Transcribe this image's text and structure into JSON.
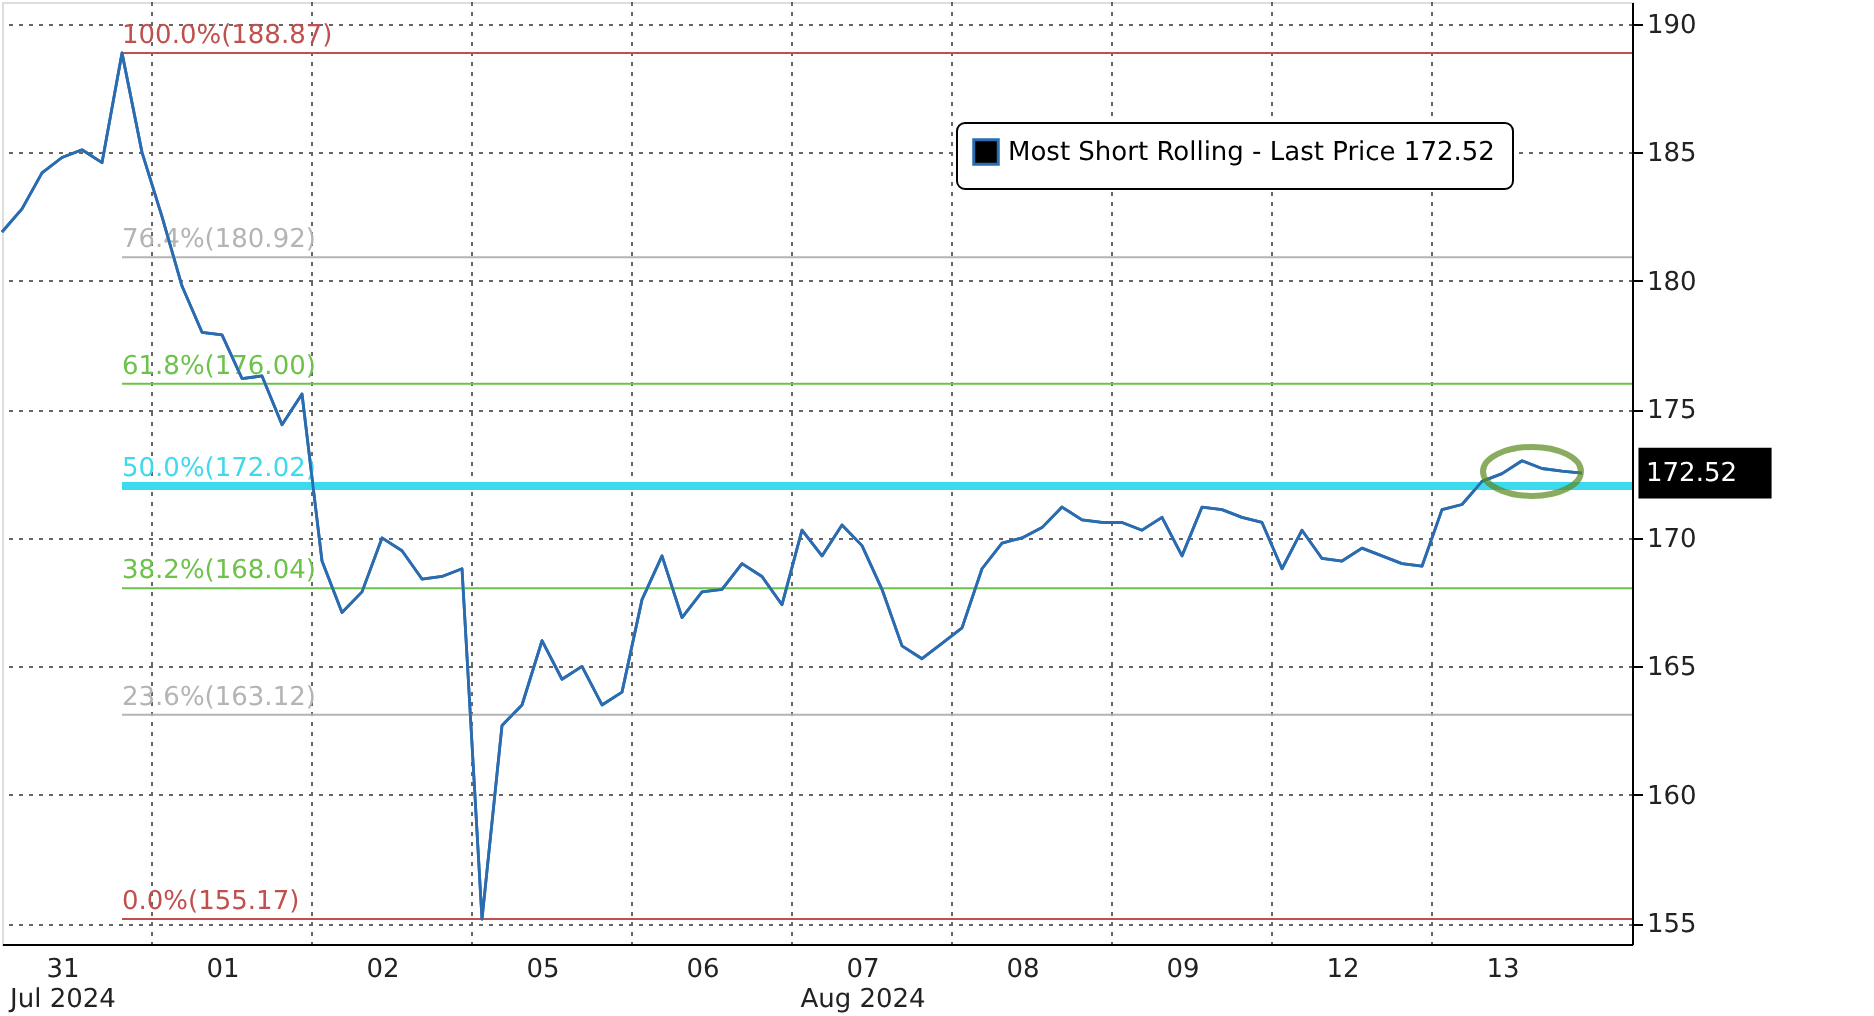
{
  "chart_data": {
    "type": "line",
    "categories": [
      null,
      null,
      null,
      "31\nJul 2024",
      null,
      null,
      null,
      null,
      null,
      null,
      null,
      "01",
      null,
      null,
      null,
      null,
      null,
      null,
      null,
      "02",
      null,
      null,
      null,
      null,
      null,
      null,
      null,
      "05",
      null,
      null,
      null,
      null,
      null,
      null,
      null,
      "06",
      null,
      null,
      null,
      null,
      null,
      null,
      null,
      "07\nAug 2024",
      null,
      null,
      null,
      null,
      null,
      null,
      null,
      "08",
      null,
      null,
      null,
      null,
      null,
      null,
      null,
      "09",
      null,
      null,
      null,
      null,
      null,
      null,
      null,
      "12",
      null,
      null,
      null,
      null,
      null,
      null,
      null,
      "13",
      null,
      null,
      null,
      null
    ],
    "ylim": [
      154.2,
      190.85
    ],
    "yticks": [
      155,
      160,
      165,
      170,
      175,
      180,
      185,
      190
    ],
    "grid": true,
    "legend": "top right",
    "line_style": "solid",
    "marker": "none",
    "series": [
      {
        "name": "Most Short Rolling - Last Price 172.52",
        "color": "#2b6cb0",
        "values": [
          181.9,
          182.8,
          184.2,
          184.8,
          185.1,
          184.6,
          188.87,
          185.0,
          182.5,
          179.8,
          178.0,
          177.9,
          176.2,
          176.3,
          174.4,
          175.6,
          169.1,
          167.1,
          167.9,
          170.0,
          169.5,
          168.4,
          168.5,
          168.8,
          155.17,
          162.7,
          163.5,
          166.0,
          164.5,
          165.0,
          163.5,
          164.0,
          167.6,
          169.3,
          166.9,
          167.9,
          168.0,
          169.0,
          168.5,
          167.4,
          170.3,
          169.3,
          170.5,
          169.7,
          168.0,
          165.8,
          165.3,
          165.9,
          166.5,
          168.8,
          169.8,
          170.0,
          170.4,
          171.2,
          170.7,
          170.6,
          170.6,
          170.3,
          170.8,
          169.3,
          171.2,
          171.1,
          170.8,
          170.6,
          168.8,
          170.3,
          169.2,
          169.1,
          169.6,
          169.3,
          169.0,
          168.9,
          171.1,
          171.3,
          172.2,
          172.5,
          173.0,
          172.7,
          172.6,
          172.52
        ]
      }
    ],
    "ref_lines": [
      {
        "axis": "y",
        "value": 188.87,
        "label": "100.0%(188.87)",
        "color": "#c0504d"
      },
      {
        "axis": "y",
        "value": 180.92,
        "label": "76.4%(180.92)",
        "color": "#b4b4b4"
      },
      {
        "axis": "y",
        "value": 176.0,
        "label": "61.8%(176.00)",
        "color": "#6cc24a"
      },
      {
        "axis": "y",
        "value": 172.02,
        "label": "50.0%(172.02)",
        "color": "#3dd9ec"
      },
      {
        "axis": "y",
        "value": 168.04,
        "label": "38.2%(168.04)",
        "color": "#6cc24a"
      },
      {
        "axis": "y",
        "value": 163.12,
        "label": "23.6%(163.12)",
        "color": "#b4b4b4"
      },
      {
        "axis": "y",
        "value": 155.17,
        "label": "0.0%(155.17)",
        "color": "#c0504d"
      }
    ],
    "annotations": [
      "172.52"
    ]
  }
}
